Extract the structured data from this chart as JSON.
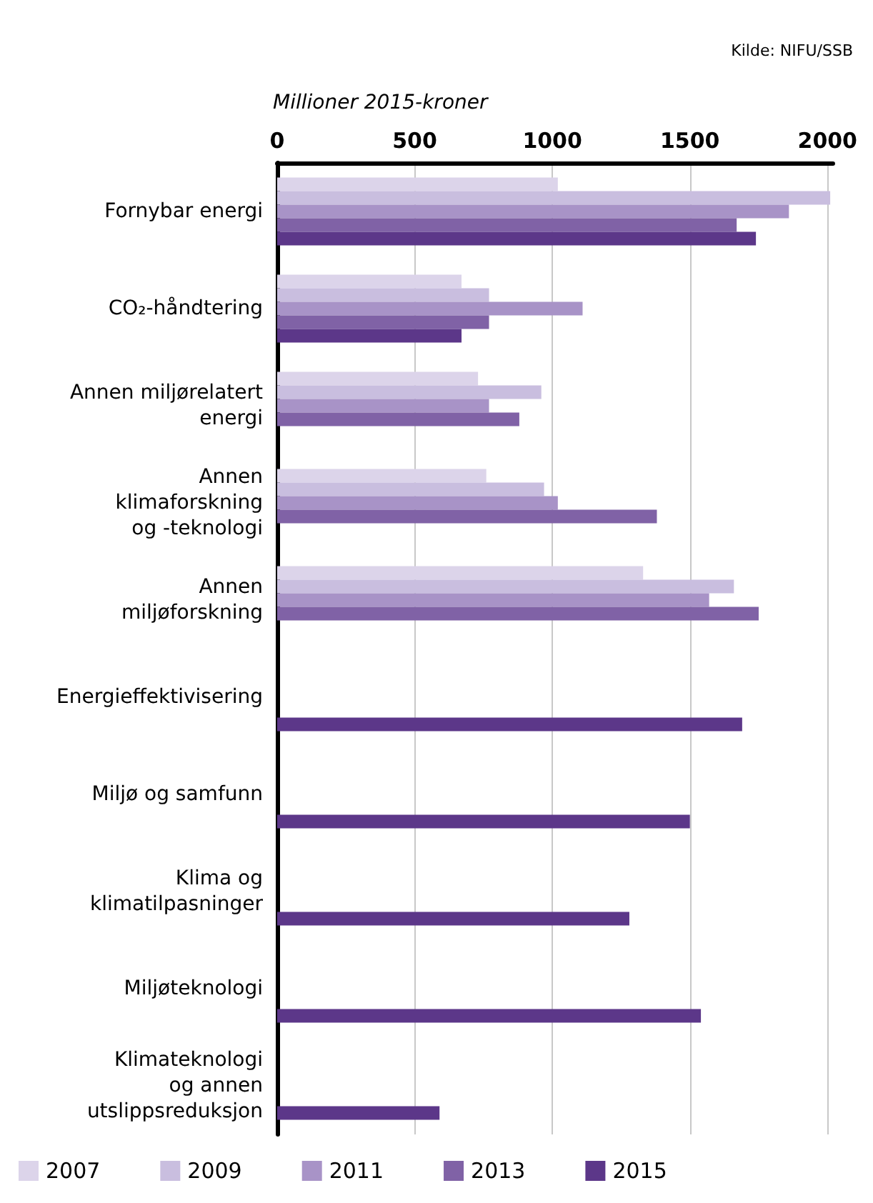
{
  "chart_data": {
    "type": "bar",
    "orientation": "horizontal",
    "xlabel": "Millioner 2015-kroner",
    "annotations": [
      "Kilde: NIFU/SSB"
    ],
    "categories": [
      "Fornybar energi",
      "CO₂-håndtering",
      "Annen miljørelatert\nenergi",
      "Annen\nklimaforskning\nog -teknologi",
      "Annen\nmiljøforskning",
      "Energieffektivisering",
      "Miljø og samfunn",
      "Klima og\nklimatilpasninger",
      "Miljøteknologi",
      "Klimateknologi\nog annen\nutslippsreduksjon"
    ],
    "series": [
      {
        "name": "2007",
        "color": "#dcd4ea",
        "values": [
          1020,
          670,
          730,
          760,
          1330,
          null,
          null,
          null,
          null,
          null
        ]
      },
      {
        "name": "2009",
        "color": "#c9bedf",
        "values": [
          2010,
          770,
          960,
          970,
          1660,
          null,
          null,
          null,
          null,
          null
        ]
      },
      {
        "name": "2011",
        "color": "#a893c7",
        "values": [
          1860,
          1110,
          770,
          1020,
          1570,
          null,
          null,
          null,
          null,
          null
        ]
      },
      {
        "name": "2013",
        "color": "#8062a6",
        "values": [
          1670,
          770,
          880,
          1380,
          1750,
          null,
          null,
          null,
          null,
          null
        ]
      },
      {
        "name": "2015",
        "color": "#5c3789",
        "values": [
          1740,
          670,
          null,
          null,
          null,
          1690,
          1500,
          1280,
          1540,
          590
        ]
      }
    ],
    "xlim": [
      0,
      2020
    ],
    "xticks": [
      0,
      500,
      1000,
      1500,
      2000
    ],
    "grid": "x",
    "legend": "bottom"
  }
}
